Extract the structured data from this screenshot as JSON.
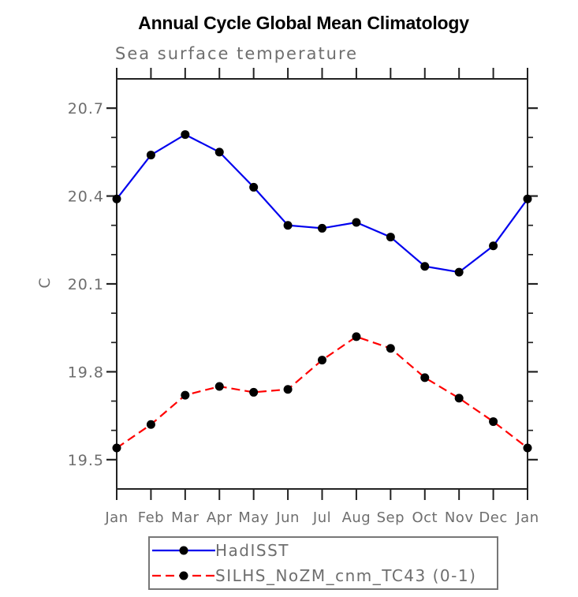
{
  "title": "Annual Cycle Global Mean Climatology",
  "subtitle": "Sea surface temperature",
  "colors": {
    "hadisst_line": "#0000ee",
    "silhs_line": "#ff0000",
    "marker": "#000000",
    "axis": "#222222",
    "gray_text": "#6e6e6e",
    "legend_border": "#777777"
  },
  "chart_data": {
    "type": "line",
    "title": "Annual Cycle Global Mean Climatology",
    "subtitle": "Sea surface temperature",
    "xlabel": "",
    "ylabel": "C",
    "categories": [
      "Jan",
      "Feb",
      "Mar",
      "Apr",
      "May",
      "Jun",
      "Jul",
      "Aug",
      "Sep",
      "Oct",
      "Nov",
      "Dec",
      "Jan"
    ],
    "ylim": [
      19.4,
      20.8
    ],
    "y_major_ticks": [
      20.7,
      20.4,
      20.1,
      19.8,
      19.5
    ],
    "y_tick_labels": [
      "20.7",
      "20.4",
      "20.1",
      "19.8",
      "19.5"
    ],
    "y_minor_step": 0.1,
    "grid": false,
    "legend_position": "bottom",
    "series": [
      {
        "name": "HadISST",
        "color": "#0000ee",
        "style": "solid",
        "marker": "circle",
        "values": [
          20.39,
          20.54,
          20.61,
          20.55,
          20.43,
          20.3,
          20.29,
          20.31,
          20.26,
          20.16,
          20.14,
          20.23,
          20.39
        ]
      },
      {
        "name": "SILHS_NoZM_cnm_TC43 (0-1)",
        "color": "#ff0000",
        "style": "dashed",
        "marker": "circle",
        "values": [
          19.54,
          19.62,
          19.72,
          19.75,
          19.73,
          19.74,
          19.84,
          19.92,
          19.88,
          19.78,
          19.71,
          19.63,
          19.54
        ]
      }
    ]
  }
}
